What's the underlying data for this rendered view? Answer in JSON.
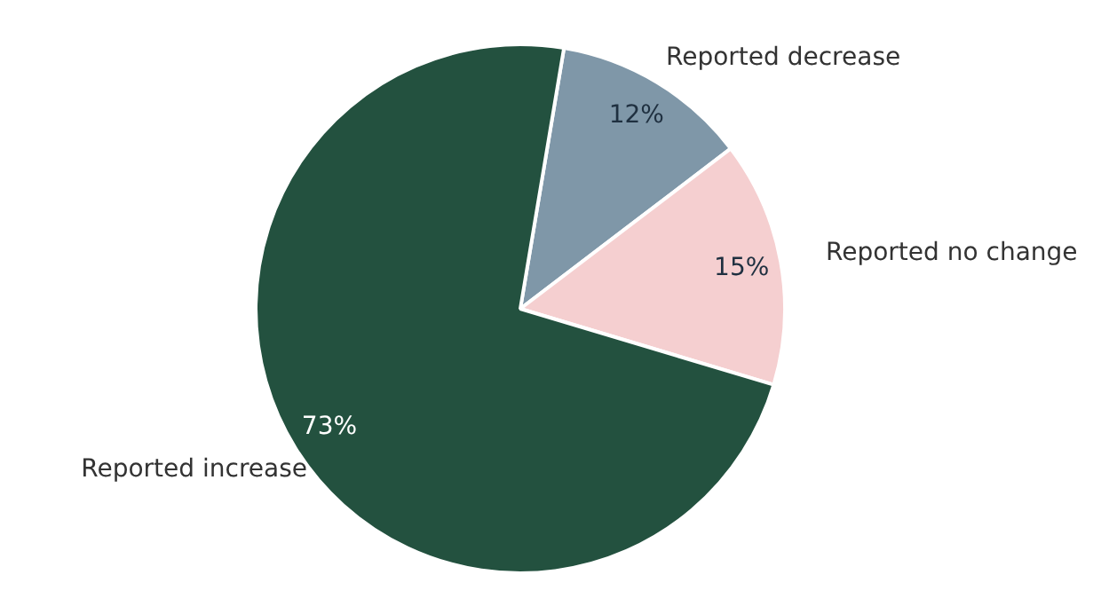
{
  "chart_data": {
    "type": "pie",
    "categories": [
      "Reported decrease",
      "Reported no change",
      "Reported increase"
    ],
    "values": [
      12,
      15,
      73
    ],
    "colors": [
      "#7f97a8",
      "#f5cfd0",
      "#23513f"
    ],
    "value_labels": [
      "12%",
      "15%",
      "73%"
    ],
    "legend": false
  }
}
